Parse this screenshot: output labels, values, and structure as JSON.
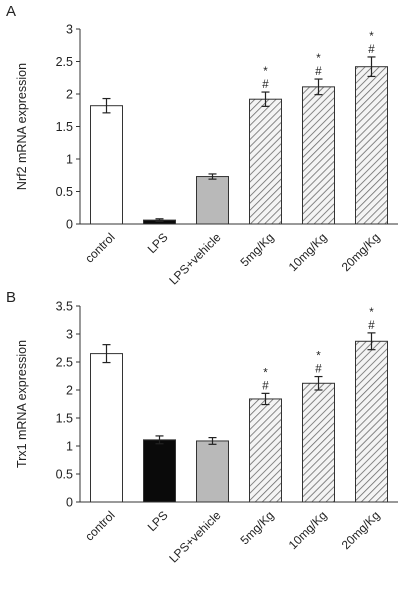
{
  "chart_data": [
    {
      "panel": "A",
      "type": "bar",
      "ylabel": "Nrf2 mRNA expression",
      "ylim": [
        0,
        3
      ],
      "yticks": [
        "0",
        "0.5",
        "1",
        "1.5",
        "2",
        "2.5",
        "3"
      ],
      "categories": [
        "control",
        "LPS",
        "LPS+vehicle",
        "5mg/Kg",
        "10mg/Kg",
        "20mg/Kg"
      ],
      "values": [
        1.82,
        0.06,
        0.73,
        1.92,
        2.11,
        2.42
      ],
      "errors": [
        0.11,
        0.02,
        0.04,
        0.11,
        0.12,
        0.15
      ],
      "fills": [
        "white",
        "black",
        "gray",
        "hatched",
        "hatched",
        "hatched"
      ],
      "marks": [
        "",
        "",
        "",
        "#*",
        "#*",
        "#*"
      ],
      "grid": false,
      "legend": false
    },
    {
      "panel": "B",
      "type": "bar",
      "ylabel": "Trx1 mRNA expression",
      "ylim": [
        0,
        3.5
      ],
      "yticks": [
        "0",
        "0.5",
        "1",
        "1.5",
        "2",
        "2.5",
        "3",
        "3.5"
      ],
      "categories": [
        "control",
        "LPS",
        "LPS+vehicle",
        "5mg/Kg",
        "10mg/Kg",
        "20mg/Kg"
      ],
      "values": [
        2.65,
        1.11,
        1.09,
        1.84,
        2.12,
        2.87
      ],
      "errors": [
        0.16,
        0.07,
        0.06,
        0.1,
        0.12,
        0.15
      ],
      "fills": [
        "white",
        "black",
        "gray",
        "hatched",
        "hatched",
        "hatched"
      ],
      "marks": [
        "",
        "",
        "",
        "#*",
        "#*",
        "#*"
      ],
      "grid": false,
      "legend": false
    }
  ],
  "colors": {
    "axis": "#333333",
    "bar_outline": "#333333",
    "black_bar": "#0a0a0a",
    "gray_bar": "#b9b9b9",
    "hatch_bg": "#f4f4f4",
    "hatch_line": "#6a6a6a"
  }
}
